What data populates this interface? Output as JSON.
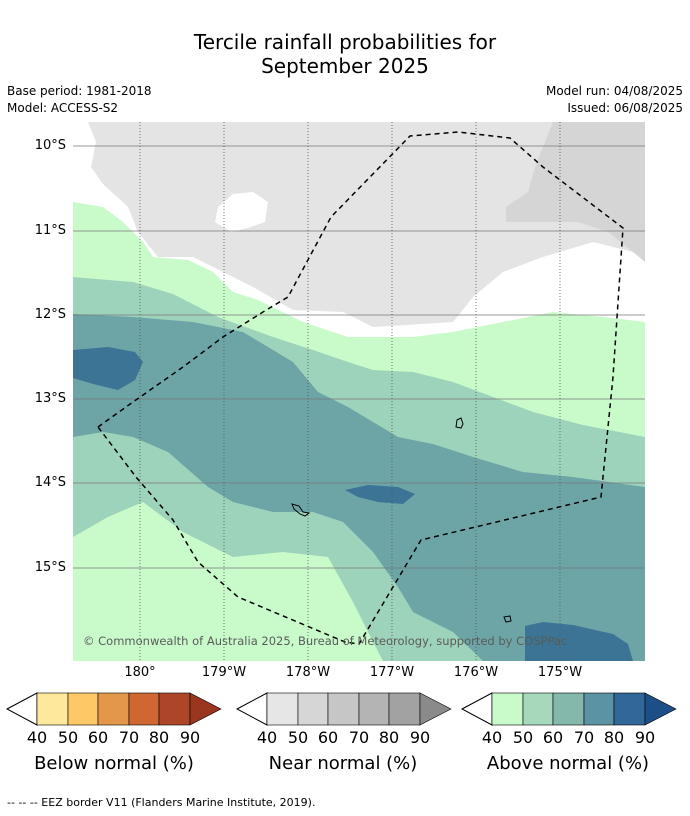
{
  "title_line1": "Tercile rainfall probabilities for",
  "title_line2": "September 2025",
  "base_period": "Base period: 1981-2018",
  "model": "Model: ACCESS-S2",
  "model_run": "Model run: 04/08/2025",
  "issued": "Issued: 06/08/2025",
  "lat_labels": [
    "10°S",
    "11°S",
    "12°S",
    "13°S",
    "14°S",
    "15°S"
  ],
  "lon_labels": [
    "180°",
    "179°W",
    "178°W",
    "177°W",
    "176°W",
    "175°W"
  ],
  "copyright": "© Commonwealth of Australia 2025, Bureau of Meteorology, supported by COSPPac",
  "colorbars": [
    {
      "title": "Below normal (%)",
      "ticks": [
        "40",
        "50",
        "60",
        "70",
        "80",
        "90"
      ],
      "colors": [
        "#fee89b",
        "#fdc865",
        "#e3974a",
        "#cf6733",
        "#ad4628",
        "#9a3520"
      ]
    },
    {
      "title": "Near normal (%)",
      "ticks": [
        "40",
        "50",
        "60",
        "70",
        "80",
        "90"
      ],
      "colors": [
        "#e6e6e6",
        "#d6d6d6",
        "#c6c6c6",
        "#b4b4b4",
        "#a2a2a2",
        "#8a8a8a"
      ]
    },
    {
      "title": "Above normal (%)",
      "ticks": [
        "40",
        "50",
        "60",
        "70",
        "80",
        "90"
      ],
      "colors": [
        "#c9fbca",
        "#a6d8bb",
        "#84b8aa",
        "#5c93a4",
        "#32679a",
        "#1c4f88"
      ]
    }
  ],
  "footer": "--  --  -- EEZ border V11 (Flanders Marine Institute, 2019).",
  "map_colors": {
    "near40": "#e4e4e4",
    "near50": "#d5d5d5",
    "above40": "#c9fbca",
    "above50": "#9ed3bb",
    "above60": "#6da5a7",
    "above70": "#3b7495"
  }
}
